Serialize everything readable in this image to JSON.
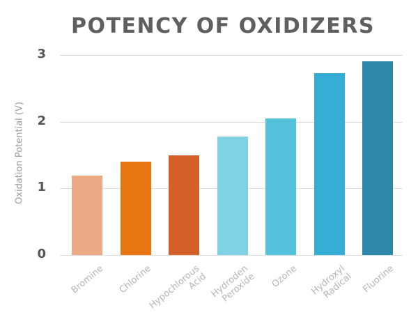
{
  "chart_data": {
    "type": "bar",
    "title": "POTENCY OF OXIDIZERS",
    "xlabel": "",
    "ylabel": "Oxidation Potential (V)",
    "ylim": [
      0,
      3
    ],
    "yticks": [
      "0",
      "1",
      "2",
      "3"
    ],
    "grid": true,
    "legend": null,
    "categories": [
      "Bromine",
      "Chlorine",
      "Hypochlorous Acid",
      "Hydroden Peroxide",
      "Ozone",
      "Hydroxyl Radical",
      "Fluorine"
    ],
    "category_lines": [
      [
        "Bromine"
      ],
      [
        "Chlorine"
      ],
      [
        "Hypochlorous",
        "Acid"
      ],
      [
        "Hydroden",
        "Peroxide"
      ],
      [
        "Ozone"
      ],
      [
        "Hydroxyl",
        "Radical"
      ],
      [
        "Fluorine"
      ]
    ],
    "values": [
      1.19,
      1.4,
      1.49,
      1.78,
      2.05,
      2.73,
      2.91
    ],
    "colors": [
      "#eeaa85",
      "#e87511",
      "#d45f28",
      "#7fd1e3",
      "#55c2dd",
      "#35aed5",
      "#2d88aa"
    ]
  }
}
